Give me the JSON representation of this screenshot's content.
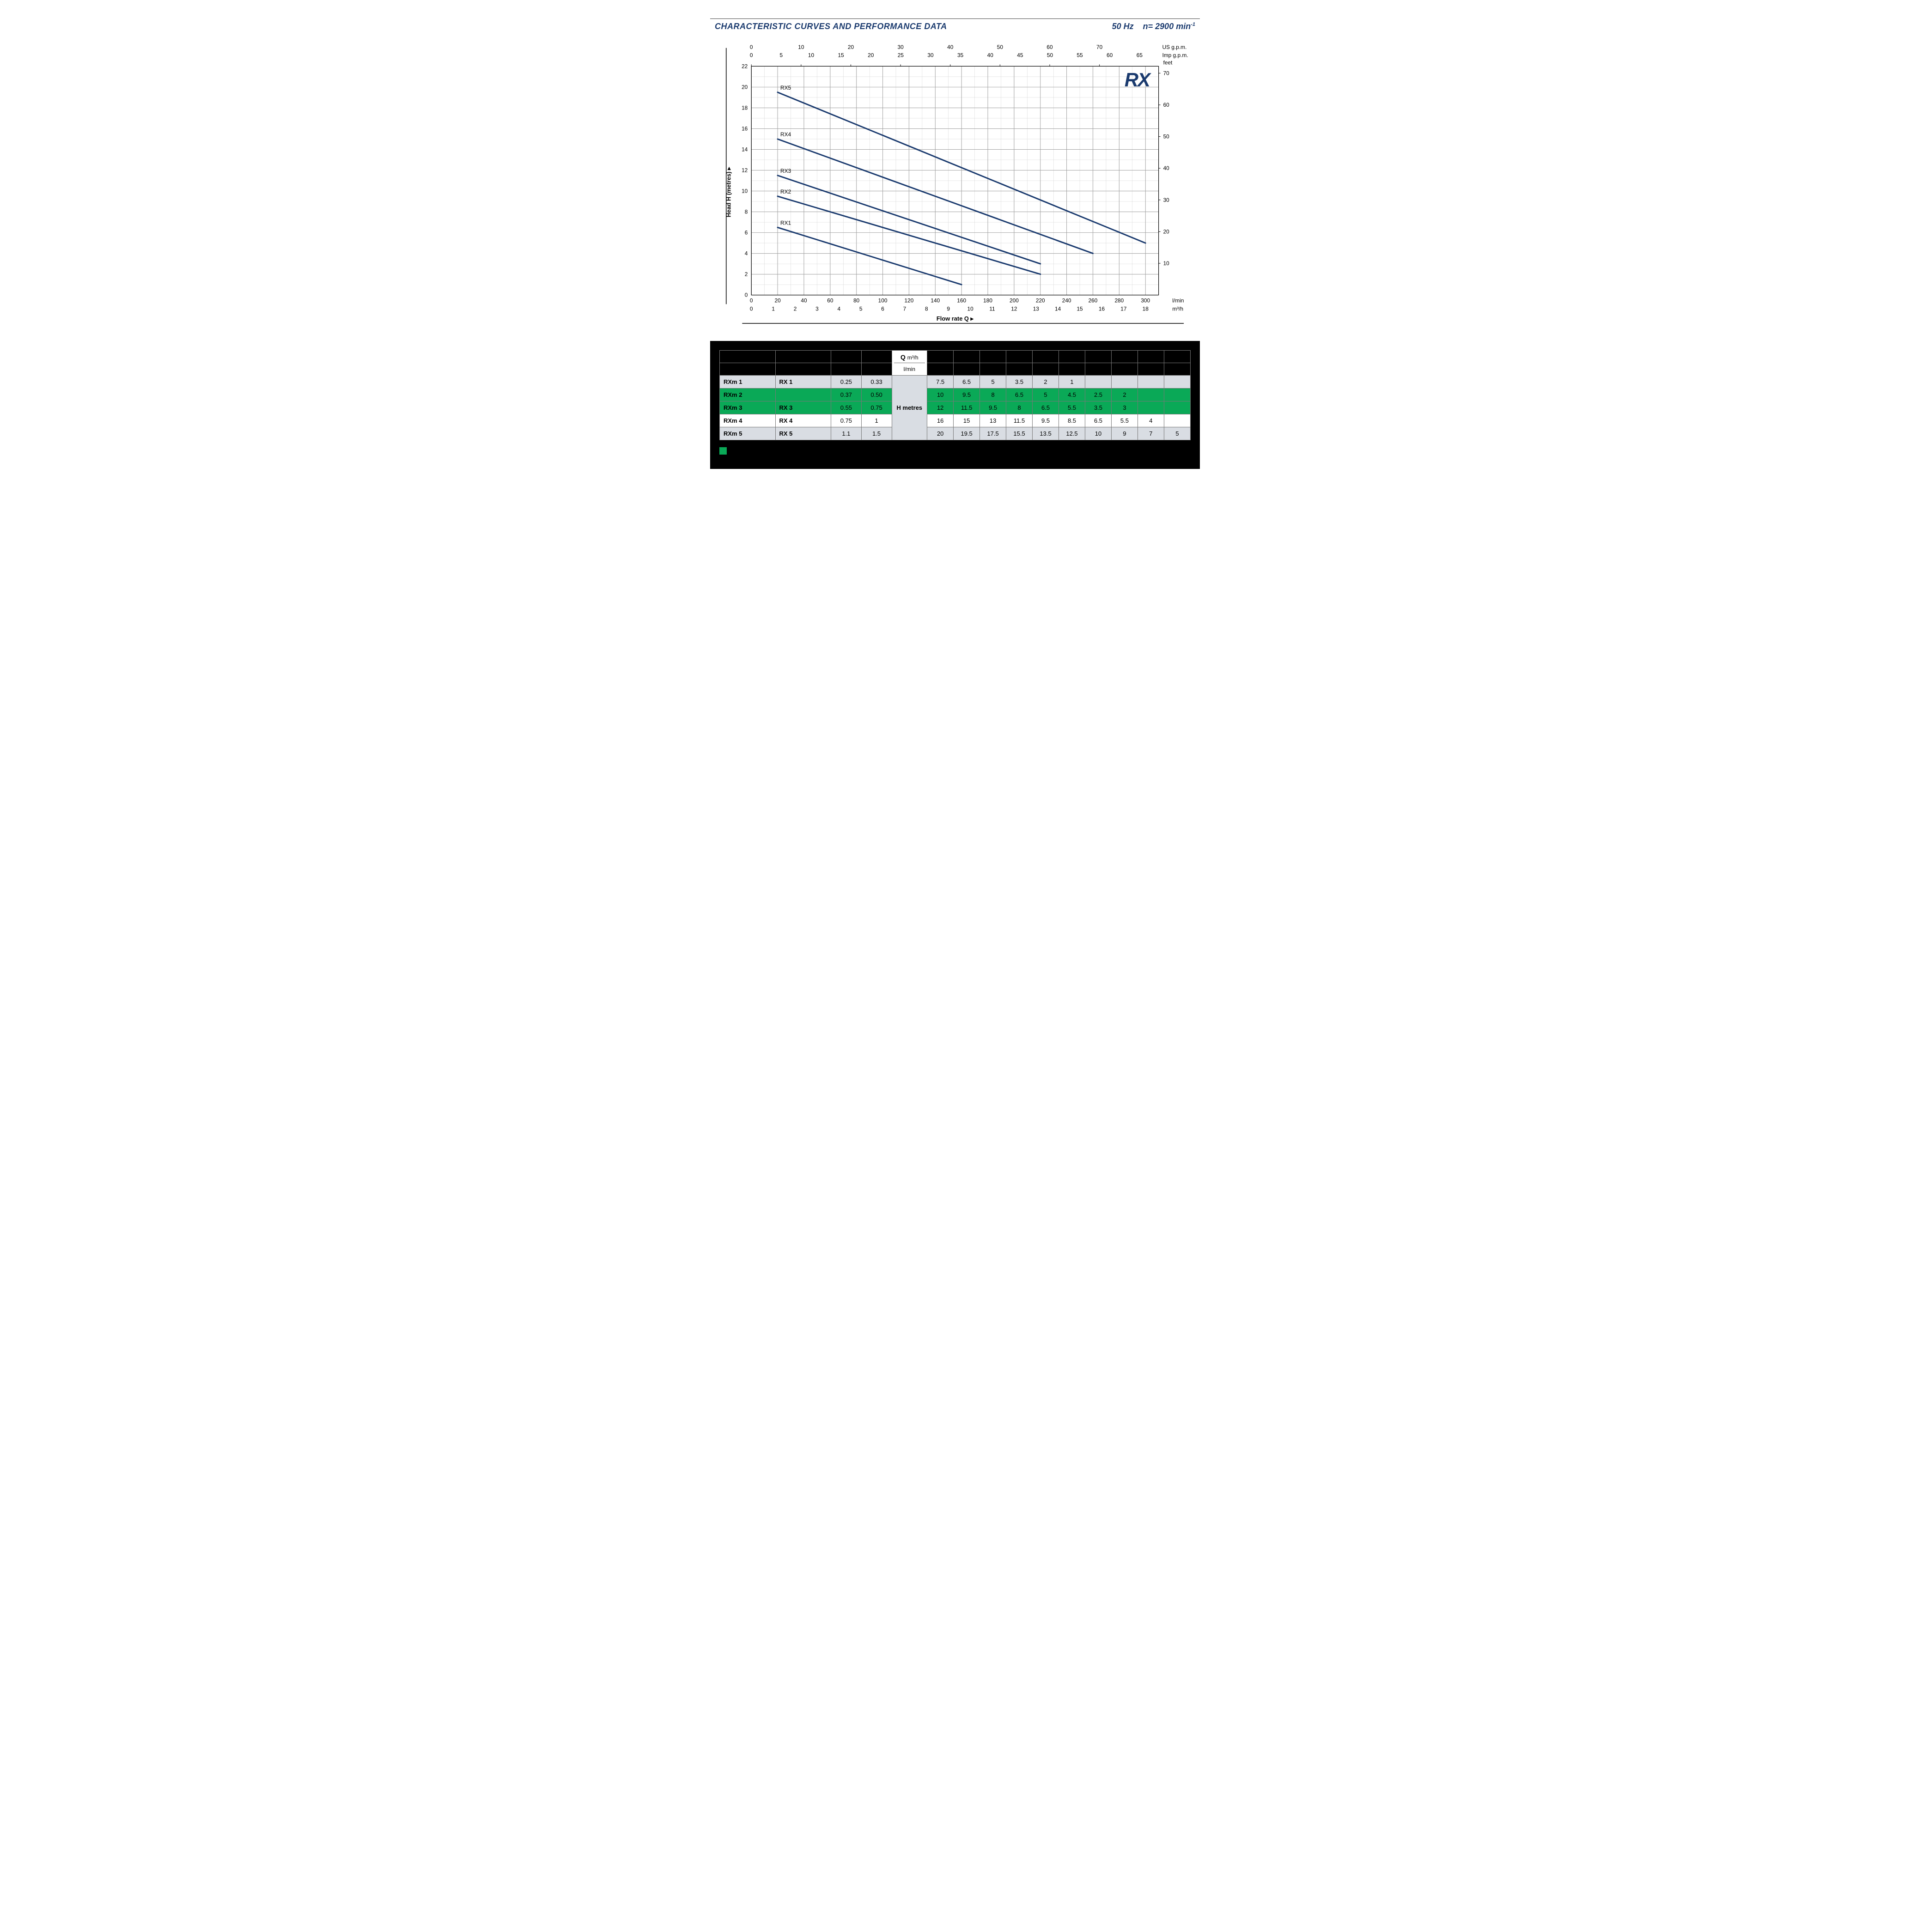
{
  "header": {
    "title": "CHARACTERISTIC CURVES AND PERFORMANCE DATA",
    "freq": "50 Hz",
    "speed_prefix": "n= 2900 min",
    "speed_exp": "-1"
  },
  "chart": {
    "type": "line",
    "logo_text": "RX",
    "y_left": {
      "label": "Head H  (metres)  ▸",
      "min": 0,
      "max": 22,
      "major_step": 2,
      "minor_step": 1,
      "ticks": [
        0,
        2,
        4,
        6,
        8,
        10,
        12,
        14,
        16,
        18,
        20,
        22
      ]
    },
    "y_right_feet": {
      "unit": "feet",
      "ticks_m_to_label": [
        {
          "m": 21.336,
          "label": "70"
        },
        {
          "m": 18.288,
          "label": "60"
        },
        {
          "m": 15.24,
          "label": "50"
        },
        {
          "m": 12.192,
          "label": "40"
        },
        {
          "m": 9.144,
          "label": "30"
        },
        {
          "m": 6.096,
          "label": "20"
        },
        {
          "m": 3.048,
          "label": "10"
        }
      ]
    },
    "x_bottom_lmin": {
      "unit": "l/min",
      "min": 0,
      "max": 310,
      "major_step": 20,
      "minor_step": 10,
      "ticks": [
        0,
        20,
        40,
        60,
        80,
        100,
        120,
        140,
        160,
        180,
        200,
        220,
        240,
        260,
        280,
        300
      ]
    },
    "x_bottom_m3h": {
      "unit": "m³/h",
      "ticks_lmin_to_label": [
        {
          "lmin": 0,
          "label": "0"
        },
        {
          "lmin": 16.67,
          "label": "1"
        },
        {
          "lmin": 33.33,
          "label": "2"
        },
        {
          "lmin": 50,
          "label": "3"
        },
        {
          "lmin": 66.67,
          "label": "4"
        },
        {
          "lmin": 83.33,
          "label": "5"
        },
        {
          "lmin": 100,
          "label": "6"
        },
        {
          "lmin": 116.67,
          "label": "7"
        },
        {
          "lmin": 133.33,
          "label": "8"
        },
        {
          "lmin": 150,
          "label": "9"
        },
        {
          "lmin": 166.67,
          "label": "10"
        },
        {
          "lmin": 183.33,
          "label": "11"
        },
        {
          "lmin": 200,
          "label": "12"
        },
        {
          "lmin": 216.67,
          "label": "13"
        },
        {
          "lmin": 233.33,
          "label": "14"
        },
        {
          "lmin": 250,
          "label": "15"
        },
        {
          "lmin": 266.67,
          "label": "16"
        },
        {
          "lmin": 283.33,
          "label": "17"
        },
        {
          "lmin": 300,
          "label": "18"
        }
      ]
    },
    "x_top_usgpm": {
      "unit": "US g.p.m.",
      "ticks_lmin_to_label": [
        {
          "lmin": 0,
          "label": "0"
        },
        {
          "lmin": 37.85,
          "label": "10"
        },
        {
          "lmin": 75.71,
          "label": "20"
        },
        {
          "lmin": 113.56,
          "label": "30"
        },
        {
          "lmin": 151.42,
          "label": "40"
        },
        {
          "lmin": 189.27,
          "label": "50"
        },
        {
          "lmin": 227.12,
          "label": "60"
        },
        {
          "lmin": 264.98,
          "label": "70"
        }
      ]
    },
    "x_top_impgpm": {
      "unit": "Imp g.p.m.",
      "ticks_lmin_to_label": [
        {
          "lmin": 0,
          "label": "0"
        },
        {
          "lmin": 22.73,
          "label": "5"
        },
        {
          "lmin": 45.46,
          "label": "10"
        },
        {
          "lmin": 68.19,
          "label": "15"
        },
        {
          "lmin": 90.92,
          "label": "20"
        },
        {
          "lmin": 113.65,
          "label": "25"
        },
        {
          "lmin": 136.38,
          "label": "30"
        },
        {
          "lmin": 159.11,
          "label": "35"
        },
        {
          "lmin": 181.84,
          "label": "40"
        },
        {
          "lmin": 204.57,
          "label": "45"
        },
        {
          "lmin": 227.3,
          "label": "50"
        },
        {
          "lmin": 250.03,
          "label": "55"
        },
        {
          "lmin": 272.76,
          "label": "60"
        },
        {
          "lmin": 295.49,
          "label": "65"
        }
      ]
    },
    "x_label": "Flow rate  Q  ▸",
    "line_color": "#1a3a6e",
    "grid_color_minor": "#d8d8d8",
    "grid_color_major": "#a8a8a8",
    "background": "#ffffff",
    "series": [
      {
        "name": "RX1",
        "points": [
          [
            20,
            6.5
          ],
          [
            160,
            1.0
          ]
        ]
      },
      {
        "name": "RX2",
        "points": [
          [
            20,
            9.5
          ],
          [
            220,
            2.0
          ]
        ]
      },
      {
        "name": "RX3",
        "points": [
          [
            20,
            11.5
          ],
          [
            220,
            3.0
          ]
        ]
      },
      {
        "name": "RX4",
        "points": [
          [
            20,
            15.0
          ],
          [
            260,
            4.0
          ]
        ]
      },
      {
        "name": "RX5",
        "points": [
          [
            20,
            19.5
          ],
          [
            300,
            5.0
          ]
        ]
      }
    ]
  },
  "table": {
    "q_header_label": "Q",
    "q_row1_unit": "m³/h",
    "q_row2_unit": "l/min",
    "h_label": "H  metres",
    "power_cols": [
      "0.25",
      "0.33",
      "0.37",
      "0.50",
      "0.55",
      "0.75",
      "0.75",
      "1",
      "1.1",
      "1.5"
    ],
    "rows": [
      {
        "band": "grey",
        "m": "RXm 1",
        "t": "RX 1",
        "kw": "0.25",
        "hp": "0.33",
        "vals": [
          "7.5",
          "6.5",
          "5",
          "3.5",
          "2",
          "1",
          "",
          "",
          "",
          ""
        ]
      },
      {
        "band": "green",
        "m": "RXm 2",
        "t": "",
        "kw": "0.37",
        "hp": "0.50",
        "vals": [
          "10",
          "9.5",
          "8",
          "6.5",
          "5",
          "4.5",
          "2.5",
          "2",
          "",
          ""
        ]
      },
      {
        "band": "green",
        "m": "RXm 3",
        "t": "RX 3",
        "kw": "0.55",
        "hp": "0.75",
        "vals": [
          "12",
          "11.5",
          "9.5",
          "8",
          "6.5",
          "5.5",
          "3.5",
          "3",
          "",
          ""
        ]
      },
      {
        "band": "white",
        "m": "RXm 4",
        "t": "RX 4",
        "kw": "0.75",
        "hp": "1",
        "vals": [
          "16",
          "15",
          "13",
          "11.5",
          "9.5",
          "8.5",
          "6.5",
          "5.5",
          "4",
          ""
        ]
      },
      {
        "band": "grey",
        "m": "RXm 5",
        "t": "RX 5",
        "kw": "1.1",
        "hp": "1.5",
        "vals": [
          "20",
          "19.5",
          "17.5",
          "15.5",
          "13.5",
          "12.5",
          "10",
          "9",
          "7",
          "5"
        ]
      }
    ],
    "green_legend": " "
  }
}
